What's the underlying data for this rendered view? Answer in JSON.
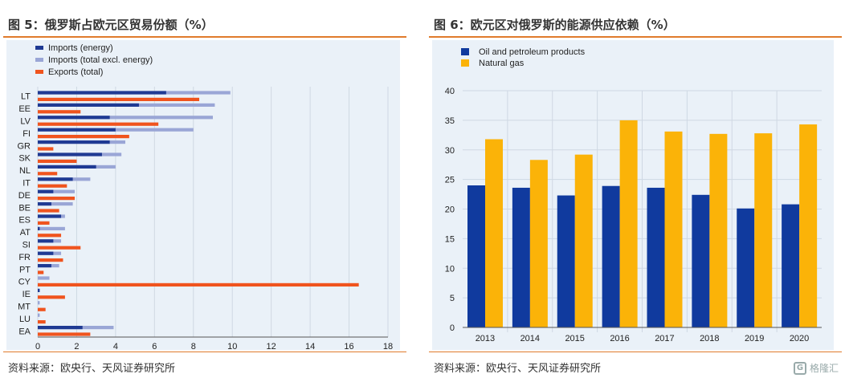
{
  "left": {
    "title": "图 5：俄罗斯占欧元区贸易份额（%）",
    "source": "资料来源：欧央行、天风证券研究所"
  },
  "right": {
    "title": "图 6：欧元区对俄罗斯的能源供应依赖（%）",
    "source": "资料来源：欧央行、天风证券研究所",
    "watermark": "格隆汇",
    "watermark_logo": "G"
  },
  "colors": {
    "dark_blue": "#1f3a93",
    "light_blue": "#9aa6d6",
    "orange": "#f0541e",
    "navy": "#103a9e",
    "amber": "#fbb308",
    "grid": "#cfd8e3",
    "rule": "#e07b2c"
  },
  "chart_data": [
    {
      "type": "bar",
      "orientation": "horizontal",
      "categories": [
        "LT",
        "EE",
        "LV",
        "FI",
        "GR",
        "SK",
        "NL",
        "IT",
        "DE",
        "BE",
        "ES",
        "AT",
        "SI",
        "FR",
        "PT",
        "CY",
        "IE",
        "MT",
        "LU",
        "EA"
      ],
      "series": [
        {
          "name": "Imports (energy)",
          "color": "#1f3a93",
          "values": [
            6.6,
            5.2,
            3.7,
            4.0,
            3.7,
            3.3,
            3.0,
            1.8,
            0.8,
            0.7,
            1.2,
            0.1,
            0.8,
            0.8,
            0.7,
            0.0,
            0.1,
            0.0,
            0.0,
            2.3
          ]
        },
        {
          "name": "Imports (total excl. energy)",
          "color": "#9aa6d6",
          "values": [
            9.9,
            9.1,
            9.0,
            8.0,
            4.5,
            4.3,
            4.0,
            2.7,
            1.9,
            1.8,
            1.4,
            1.4,
            1.2,
            1.2,
            1.1,
            0.6,
            0.1,
            0.1,
            0.1,
            3.9
          ]
        },
        {
          "name": "Exports (total)",
          "color": "#f0541e",
          "values": [
            8.3,
            2.2,
            6.2,
            4.7,
            0.8,
            2.0,
            1.0,
            1.5,
            1.9,
            1.1,
            0.6,
            1.2,
            2.2,
            1.3,
            0.3,
            16.5,
            1.4,
            0.4,
            0.4,
            2.7
          ]
        }
      ],
      "xlim": [
        0,
        18
      ],
      "xticks": [
        0,
        2,
        4,
        6,
        8,
        10,
        12,
        14,
        16,
        18
      ],
      "grid": true,
      "legend": "top-left"
    },
    {
      "type": "bar",
      "categories": [
        "2013",
        "2014",
        "2015",
        "2016",
        "2017",
        "2018",
        "2019",
        "2020"
      ],
      "series": [
        {
          "name": "Oil and petroleum products",
          "color": "#103a9e",
          "values": [
            24.0,
            23.6,
            22.3,
            23.9,
            23.6,
            22.4,
            20.1,
            20.8
          ]
        },
        {
          "name": "Natural gas",
          "color": "#fbb308",
          "values": [
            31.8,
            28.3,
            29.2,
            35.0,
            33.1,
            32.7,
            32.8,
            34.3
          ]
        }
      ],
      "ylim": [
        0,
        40
      ],
      "yticks": [
        0,
        5,
        10,
        15,
        20,
        25,
        30,
        35,
        40
      ],
      "grid": true,
      "legend": "top-left"
    }
  ]
}
